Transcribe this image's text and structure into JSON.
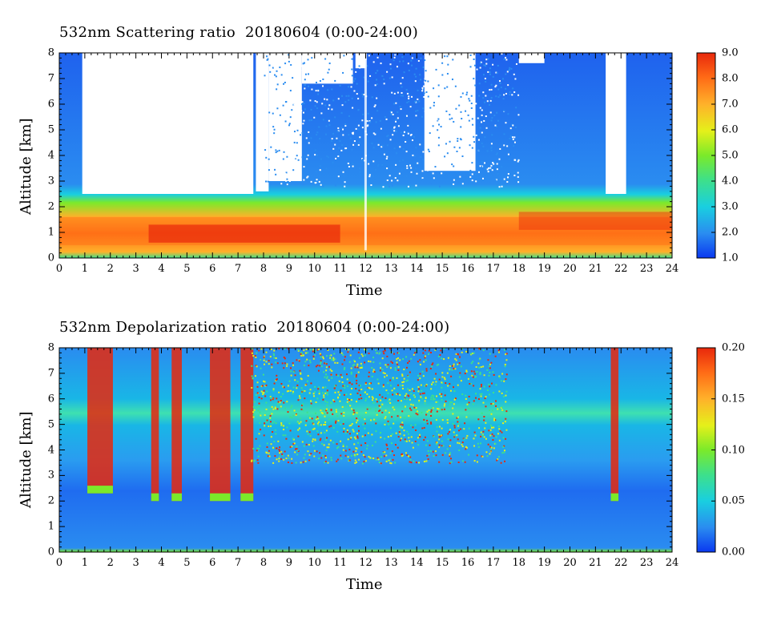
{
  "chart_data": [
    {
      "type": "heatmap",
      "title": "532nm Scattering ratio  20180604 (0:00-24:00)",
      "xlabel": "Time",
      "ylabel": "Altitude [km]",
      "xlim": [
        0,
        24
      ],
      "ylim": [
        0,
        8
      ],
      "x_ticks": [
        "0",
        "1",
        "2",
        "3",
        "4",
        "5",
        "6",
        "7",
        "8",
        "9",
        "10",
        "11",
        "12",
        "13",
        "14",
        "15",
        "16",
        "17",
        "18",
        "19",
        "20",
        "21",
        "22",
        "23",
        "24"
      ],
      "y_ticks": [
        "0",
        "1",
        "2",
        "3",
        "4",
        "5",
        "6",
        "7",
        "8"
      ],
      "colorbar": {
        "range": [
          1.0,
          9.0
        ],
        "ticks": [
          "1.0",
          "2.0",
          "3.0",
          "4.0",
          "5.0",
          "6.0",
          "7.0",
          "8.0",
          "9.0"
        ],
        "colors": [
          "#0a38f0",
          "#2a8cf0",
          "#19cfe0",
          "#3ee08a",
          "#7bea2a",
          "#e5f01a",
          "#ffb12a",
          "#ff6b16",
          "#e8280c"
        ]
      },
      "description_colors": {
        "no_data": "#ffffff"
      }
    },
    {
      "type": "heatmap",
      "title": "532nm Depolarization ratio  20180604 (0:00-24:00)",
      "xlabel": "Time",
      "ylabel": "Altitude [km]",
      "xlim": [
        0,
        24
      ],
      "ylim": [
        0,
        8
      ],
      "x_ticks": [
        "0",
        "1",
        "2",
        "3",
        "4",
        "5",
        "6",
        "7",
        "8",
        "9",
        "10",
        "11",
        "12",
        "13",
        "14",
        "15",
        "16",
        "17",
        "18",
        "19",
        "20",
        "21",
        "22",
        "23",
        "24"
      ],
      "y_ticks": [
        "0",
        "1",
        "2",
        "3",
        "4",
        "5",
        "6",
        "7",
        "8"
      ],
      "colorbar": {
        "range": [
          0.0,
          0.2
        ],
        "ticks": [
          "0.00",
          "0.05",
          "0.10",
          "0.15",
          "0.20"
        ],
        "colors": [
          "#0a38f0",
          "#2a8cf0",
          "#19cfe0",
          "#3ee08a",
          "#7bea2a",
          "#e5f01a",
          "#ffb12a",
          "#ff6b16",
          "#e8280c"
        ]
      }
    }
  ]
}
